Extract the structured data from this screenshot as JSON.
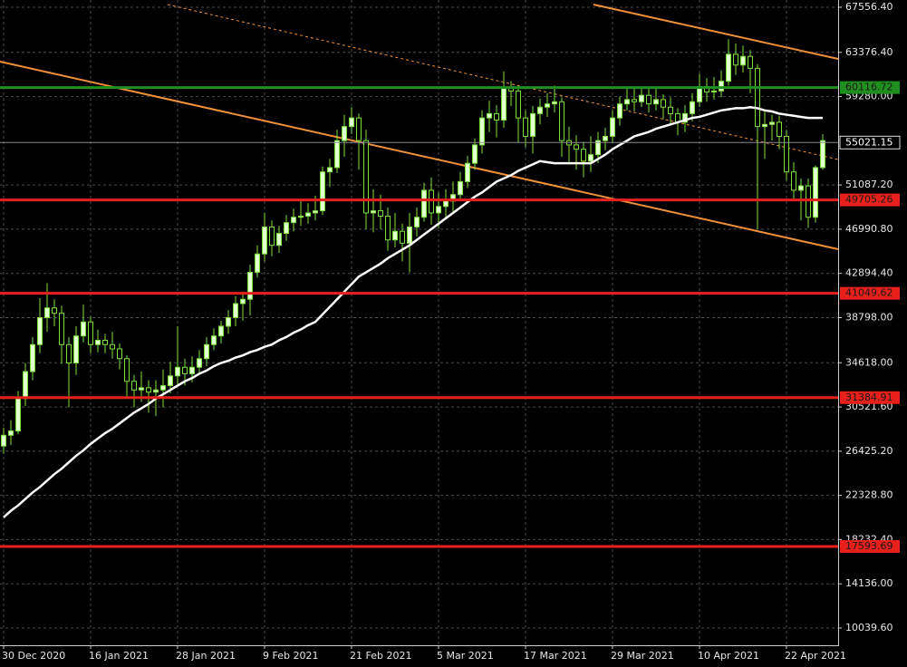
{
  "chart_data": {
    "type": "candlestick",
    "categories": [
      "30 Dec 2020",
      null,
      null,
      null,
      null,
      null,
      null,
      null,
      null,
      null,
      null,
      null,
      "16 Jan 2021",
      null,
      null,
      null,
      null,
      null,
      null,
      null,
      null,
      null,
      null,
      null,
      "28 Jan 2021",
      null,
      null,
      null,
      null,
      null,
      null,
      null,
      null,
      null,
      null,
      null,
      "9 Feb 2021",
      null,
      null,
      null,
      null,
      null,
      null,
      null,
      null,
      null,
      null,
      null,
      "21 Feb 2021",
      null,
      null,
      null,
      null,
      null,
      null,
      null,
      null,
      null,
      null,
      null,
      "5 Mar 2021",
      null,
      null,
      null,
      null,
      null,
      null,
      null,
      null,
      null,
      null,
      null,
      "17 Mar 2021",
      null,
      null,
      null,
      null,
      null,
      null,
      null,
      null,
      null,
      null,
      null,
      "29 Mar 2021",
      null,
      null,
      null,
      null,
      null,
      null,
      null,
      null,
      null,
      null,
      null,
      "10 Apr 2021",
      null,
      null,
      null,
      null,
      null,
      null,
      null,
      null,
      null,
      null,
      null,
      "22 Apr 2021",
      null,
      null,
      null,
      null,
      null
    ],
    "open": [
      26900,
      27900,
      28300,
      31300,
      33800,
      36300,
      38800,
      39700,
      39200,
      36300,
      34600,
      37100,
      38400,
      36300,
      36700,
      36300,
      35900,
      35000,
      32900,
      32100,
      32300,
      31900,
      32100,
      32500,
      33400,
      34200,
      33600,
      34200,
      35000,
      36300,
      37100,
      38000,
      38800,
      40100,
      40500,
      43000,
      44700,
      47200,
      45500,
      46600,
      47600,
      48100,
      48200,
      48500,
      48700,
      52300,
      52700,
      55200,
      56500,
      57300,
      55200,
      48500,
      48700,
      48200,
      46000,
      46800,
      45700,
      47200,
      48100,
      50600,
      48500,
      49100,
      49600,
      50200,
      51400,
      53100,
      54800,
      57300,
      57700,
      57100,
      60100,
      59800,
      57300,
      55600,
      57700,
      58300,
      58600,
      58800,
      55200,
      54800,
      54400,
      53300,
      53900,
      55200,
      55600,
      57300,
      58600,
      59000,
      58800,
      59400,
      58600,
      59000,
      58300,
      57700,
      56900,
      57700,
      58800,
      60200,
      59700,
      59800,
      60700,
      63200,
      62200,
      63000,
      61900,
      56500,
      56700,
      56900,
      55600,
      52300,
      50600,
      51000,
      48100,
      52700
    ],
    "high": [
      28600,
      29300,
      32000,
      34600,
      37000,
      40600,
      42000,
      40500,
      39900,
      37000,
      38000,
      40000,
      38900,
      37700,
      37300,
      37500,
      36400,
      35300,
      33500,
      33800,
      33000,
      33000,
      34000,
      34700,
      38000,
      35000,
      35200,
      35800,
      37000,
      37800,
      38500,
      39500,
      40800,
      41200,
      43700,
      45500,
      48500,
      47800,
      47300,
      48300,
      48900,
      49600,
      49400,
      50100,
      52800,
      53500,
      56200,
      57600,
      58300,
      57700,
      56200,
      50700,
      50200,
      49000,
      48500,
      47500,
      48500,
      49000,
      51300,
      51800,
      50400,
      50700,
      51400,
      52300,
      53800,
      55400,
      58000,
      58900,
      58500,
      61600,
      60700,
      60300,
      58000,
      58400,
      59100,
      59600,
      60300,
      59200,
      56500,
      55700,
      55100,
      55600,
      56000,
      56400,
      58000,
      59300,
      60000,
      60000,
      60100,
      60000,
      60000,
      59500,
      59200,
      58200,
      58500,
      59600,
      61400,
      61000,
      61100,
      61700,
      64600,
      64200,
      64000,
      63600,
      62300,
      57900,
      57600,
      57500,
      56200,
      53200,
      51700,
      51700,
      52900,
      55800
    ],
    "low": [
      26200,
      27000,
      28000,
      30600,
      33000,
      35500,
      37500,
      38000,
      34500,
      30500,
      33500,
      36500,
      35500,
      35600,
      35500,
      35000,
      34000,
      31500,
      30500,
      31000,
      30000,
      29700,
      30500,
      31800,
      32500,
      32500,
      32800,
      33500,
      34300,
      35800,
      36400,
      37300,
      38000,
      38500,
      39000,
      42500,
      44000,
      44500,
      44800,
      45900,
      46800,
      47300,
      47500,
      47800,
      48300,
      50900,
      52200,
      53700,
      55800,
      52500,
      47000,
      46700,
      47000,
      45000,
      45300,
      44000,
      43000,
      46300,
      47700,
      47400,
      47100,
      48000,
      48600,
      49600,
      50800,
      52500,
      54000,
      56000,
      55500,
      56400,
      58400,
      55000,
      54600,
      54000,
      56700,
      57400,
      57800,
      53700,
      53200,
      52500,
      51800,
      52300,
      53100,
      54300,
      55000,
      56600,
      58000,
      57900,
      58300,
      57800,
      58000,
      57200,
      56600,
      55700,
      56000,
      57000,
      58300,
      58800,
      59000,
      59200,
      60300,
      61300,
      61500,
      59600,
      47000,
      53500,
      55200,
      54400,
      51500,
      49800,
      47800,
      47100,
      47600,
      52500
    ],
    "close": [
      27900,
      28300,
      31300,
      33800,
      36300,
      38800,
      39700,
      39200,
      36300,
      34600,
      37100,
      38400,
      36300,
      36700,
      36300,
      35900,
      35000,
      32900,
      32100,
      32300,
      31900,
      32100,
      32500,
      33400,
      34200,
      33600,
      34200,
      35000,
      36300,
      37100,
      38000,
      38800,
      40100,
      40500,
      43000,
      44700,
      47200,
      45500,
      46600,
      47600,
      48100,
      48200,
      48500,
      48700,
      52300,
      52700,
      55200,
      56500,
      57300,
      55200,
      48500,
      48700,
      48200,
      46000,
      46800,
      45700,
      47200,
      48100,
      50600,
      48500,
      49100,
      49600,
      50200,
      51400,
      53100,
      54800,
      57300,
      57700,
      57100,
      60100,
      59800,
      57300,
      55600,
      57700,
      58300,
      58600,
      58800,
      55200,
      54800,
      54400,
      53300,
      53900,
      55200,
      55600,
      57300,
      58600,
      59000,
      58800,
      59400,
      58600,
      59000,
      58300,
      57700,
      56900,
      57700,
      58800,
      60200,
      59700,
      59800,
      60700,
      63200,
      62200,
      63000,
      61900,
      56500,
      56700,
      56900,
      55600,
      52300,
      50600,
      51000,
      48100,
      52700,
      55200
    ],
    "moving_average": [
      20300,
      20900,
      21400,
      22000,
      22600,
      23100,
      23700,
      24300,
      24800,
      25400,
      26000,
      26500,
      27100,
      27600,
      28100,
      28500,
      29000,
      29500,
      30000,
      30400,
      30800,
      31300,
      31700,
      32100,
      32500,
      32900,
      33200,
      33600,
      33900,
      34300,
      34600,
      34800,
      35100,
      35300,
      35600,
      35800,
      36100,
      36300,
      36700,
      37000,
      37400,
      37700,
      38100,
      38400,
      39100,
      39800,
      40500,
      41200,
      41900,
      42600,
      43000,
      43400,
      43800,
      44300,
      44700,
      45100,
      45500,
      46000,
      46500,
      47000,
      47500,
      48000,
      48500,
      49000,
      49500,
      50000,
      50400,
      50900,
      51400,
      51700,
      52000,
      52400,
      52700,
      53000,
      53300,
      53200,
      53100,
      53100,
      53100,
      53100,
      53100,
      53100,
      53500,
      53900,
      54400,
      54800,
      55200,
      55600,
      55800,
      56000,
      56300,
      56500,
      56700,
      56900,
      57100,
      57300,
      57400,
      57600,
      57800,
      58000,
      58100,
      58200,
      58200,
      58300,
      58200,
      58000,
      57900,
      57700,
      57600,
      57500,
      57400,
      57300,
      57300,
      57300
    ],
    "levels": [
      {
        "value": 60116.72,
        "color": "#1f8f1f"
      },
      {
        "value": 49705.26,
        "color": "#e8201c"
      },
      {
        "value": 41049.62,
        "color": "#e8201c"
      },
      {
        "value": 31384.91,
        "color": "#e8201c"
      },
      {
        "value": 17593.69,
        "color": "#e8201c"
      }
    ],
    "current_price": 55021.15,
    "ylim": [
      8444,
      68228
    ],
    "yticks": [
      {
        "value": 67556.4,
        "label": "67556.40"
      },
      {
        "value": 63376.4,
        "label": "63376.40"
      },
      {
        "value": 59280,
        "label": "59280.00"
      },
      {
        "value": 51087.2,
        "label": "51087.20"
      },
      {
        "value": 46990.8,
        "label": "46990.80"
      },
      {
        "value": 42894.4,
        "label": "42894.40"
      },
      {
        "value": 38798,
        "label": "38798.00"
      },
      {
        "value": 34618,
        "label": "34618.00"
      },
      {
        "value": 30521.6,
        "label": "30521.60"
      },
      {
        "value": 26425.2,
        "label": "26425.20"
      },
      {
        "value": 22328.8,
        "label": "22328.80"
      },
      {
        "value": 18232.4,
        "label": "18232.40"
      },
      {
        "value": 14136,
        "label": "14136.00"
      },
      {
        "value": 10039.6,
        "label": "10039.60"
      }
    ],
    "grid": true,
    "up_color": "#dfffd0",
    "down_color": "#000000",
    "wick_color": "#7ddf3a",
    "ma_color": "#ffffff"
  }
}
